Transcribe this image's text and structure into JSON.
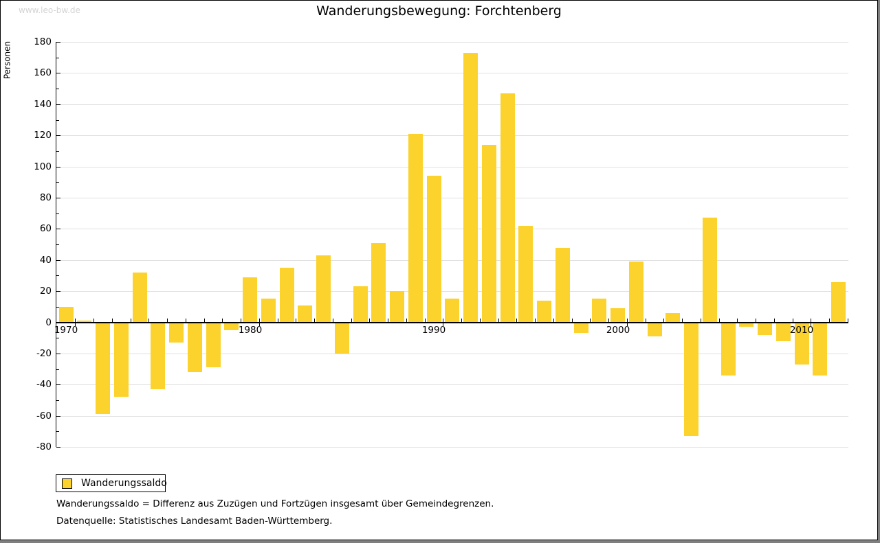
{
  "watermark": "www.leo-bw.de",
  "chart_data": {
    "type": "bar",
    "title": "Wanderungsbewegung: Forchtenberg",
    "ylabel": "Personen",
    "xlabel": "",
    "ylim": [
      -80,
      180
    ],
    "y_tick_step": 20,
    "y_minor_tick_step": 10,
    "x_tick_labels": [
      1970,
      1980,
      1990,
      2000,
      2010
    ],
    "grid": true,
    "legend": [
      "Wanderungssaldo"
    ],
    "legend_position": "bottom-left",
    "categories": [
      1970,
      1971,
      1972,
      1973,
      1974,
      1975,
      1976,
      1977,
      1978,
      1979,
      1980,
      1981,
      1982,
      1983,
      1984,
      1985,
      1986,
      1987,
      1988,
      1989,
      1990,
      1991,
      1992,
      1993,
      1994,
      1995,
      1996,
      1997,
      1998,
      1999,
      2000,
      2001,
      2002,
      2003,
      2004,
      2005,
      2006,
      2007,
      2008,
      2009,
      2010,
      2011,
      2012
    ],
    "values": [
      10,
      1,
      -59,
      -48,
      32,
      -43,
      -13,
      -32,
      -29,
      -5,
      29,
      15,
      35,
      11,
      43,
      -20,
      23,
      51,
      20,
      121,
      94,
      15,
      173,
      114,
      147,
      62,
      14,
      48,
      -7,
      15,
      9,
      39,
      -9,
      6,
      -73,
      67,
      -34,
      -3,
      -8,
      -12,
      -27,
      -34,
      26
    ]
  },
  "footnotes": [
    "Wanderungssaldo = Differenz aus Zuzügen und Fortzügen insgesamt über Gemeindegrenzen.",
    "Datenquelle: Statistisches Landesamt Baden-Württemberg."
  ],
  "colors": {
    "bar": "#FCD32D",
    "grid": "#E0E0E0",
    "axis": "#000000",
    "watermark": "#D3D3D3",
    "frame_shadow": "#7F7F7F"
  }
}
